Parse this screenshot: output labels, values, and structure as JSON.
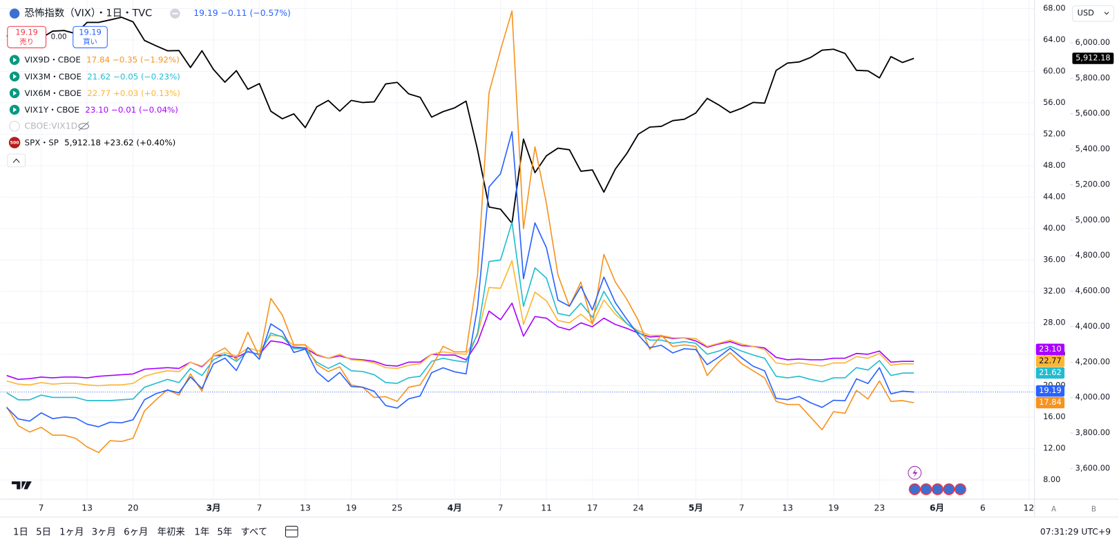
{
  "chart_data": {
    "type": "line",
    "categories": [
      null,
      null,
      null,
      "7",
      null,
      null,
      null,
      "13",
      null,
      null,
      null,
      "20",
      null,
      null,
      null,
      null,
      null,
      null,
      "3月",
      null,
      null,
      null,
      "7",
      null,
      null,
      null,
      "13",
      null,
      null,
      null,
      "19",
      null,
      null,
      null,
      "25",
      null,
      null,
      null,
      null,
      "4月",
      null,
      null,
      null,
      "7",
      null,
      null,
      null,
      "11",
      null,
      null,
      null,
      "17",
      null,
      null,
      null,
      "24",
      null,
      null,
      null,
      null,
      "5月",
      null,
      null,
      null,
      "7",
      null,
      null,
      null,
      "13",
      null,
      null,
      null,
      "19",
      null,
      null,
      null,
      "23",
      null,
      null,
      null,
      null,
      "6月",
      null,
      null,
      null,
      "6",
      null,
      null,
      null,
      "12"
    ],
    "series": [
      {
        "name": "恐怖指数（VIX）・1日・TVC",
        "quote": "19.19 −0.11 (−0.57%)",
        "color": "#2962ff",
        "last_label": "19.19",
        "values": [
          17.21,
          15.77,
          15.5,
          16.54,
          15.81,
          16.02,
          15.89,
          15.1,
          14.77,
          15.35,
          15.27,
          15.66,
          18.21,
          18.98,
          19.43,
          19.1,
          21.13,
          19.63,
          22.78,
          23.51,
          21.93,
          24.87,
          23.37,
          27.86,
          26.92,
          24.23,
          24.66,
          21.77,
          20.51,
          21.7,
          19.9,
          19.8,
          19.28,
          17.48,
          17.15,
          18.33,
          18.69,
          21.65,
          22.28,
          21.77,
          21.51,
          30.02,
          45.31,
          46.98,
          52.33,
          33.62,
          40.72,
          37.56,
          30.89,
          30.12,
          32.64,
          29.65,
          33.82,
          30.57,
          28.45,
          26.47,
          24.84,
          25.15,
          24.17,
          24.7,
          24.6,
          22.68,
          23.64,
          24.76,
          23.55,
          22.48,
          21.9,
          18.39,
          18.22,
          18.62,
          17.83,
          17.24,
          18.14,
          18.09,
          20.87,
          20.28,
          22.29,
          18.96,
          19.31,
          19.19,
          null,
          null,
          null,
          null,
          null,
          null,
          null,
          null,
          null,
          null
        ]
      },
      {
        "name": "VIX9D・CBOE",
        "quote": "17.84 −0.35 (−1.92%)",
        "color": "#f7931e",
        "last_label": "17.84",
        "values": [
          17.3,
          14.9,
          14.1,
          14.7,
          13.7,
          13.7,
          13.3,
          12.2,
          11.5,
          13.0,
          12.9,
          13.3,
          16.8,
          18.2,
          19.5,
          18.8,
          21.5,
          19.3,
          24.0,
          24.8,
          23.3,
          26.8,
          23.7,
          31.1,
          29.0,
          25.2,
          25.2,
          22.7,
          21.8,
          22.4,
          20.1,
          19.8,
          18.5,
          18.6,
          18.0,
          19.8,
          20.1,
          22.4,
          25.0,
          24.3,
          24.3,
          34.1,
          57.3,
          62.7,
          67.7,
          40.0,
          50.4,
          43.2,
          34.1,
          30.1,
          33.2,
          27.8,
          36.7,
          33.2,
          31.0,
          28.3,
          24.6,
          26.4,
          25.0,
          25.2,
          25.0,
          21.3,
          23.0,
          24.2,
          22.8,
          21.9,
          21.0,
          18.0,
          17.6,
          17.6,
          16.0,
          14.4,
          16.7,
          16.5,
          19.4,
          18.3,
          20.6,
          18.0,
          18.1,
          17.84,
          null,
          null,
          null,
          null,
          null,
          null,
          null,
          null,
          null,
          null
        ]
      },
      {
        "name": "VIX3M・CBOE",
        "quote": "21.62 −0.05 (−0.23%)",
        "color": "#22bcd1",
        "last_label": "21.62",
        "values": [
          19.1,
          18.2,
          18.2,
          18.8,
          18.5,
          18.5,
          18.5,
          18.1,
          18.1,
          18.1,
          18.2,
          18.3,
          19.8,
          20.3,
          20.8,
          20.4,
          22.2,
          21.3,
          23.3,
          24.0,
          23.1,
          24.4,
          23.9,
          26.7,
          26.2,
          24.7,
          24.7,
          23.0,
          22.2,
          22.9,
          21.9,
          21.8,
          21.4,
          20.4,
          20.3,
          21.0,
          21.2,
          23.1,
          23.5,
          23.2,
          23.0,
          26.7,
          35.8,
          36.0,
          40.8,
          30.1,
          35.0,
          33.7,
          29.2,
          28.9,
          30.5,
          28.7,
          32.0,
          29.6,
          27.9,
          26.8,
          25.8,
          25.8,
          25.4,
          25.6,
          25.4,
          24.0,
          24.4,
          25.0,
          24.4,
          23.9,
          23.5,
          21.2,
          21.0,
          21.2,
          20.8,
          20.5,
          21.0,
          21.0,
          22.3,
          22.0,
          23.2,
          21.3,
          21.6,
          21.62,
          null,
          null,
          null,
          null,
          null,
          null,
          null,
          null,
          null,
          null
        ]
      },
      {
        "name": "VIX6M・CBOE",
        "quote": "22.77 +0.03 (+0.13%)",
        "color": "#fbb634",
        "last_label": "22.77",
        "values": [
          20.6,
          20.2,
          20.1,
          20.4,
          20.2,
          20.3,
          20.3,
          20.1,
          20.0,
          20.1,
          20.1,
          20.3,
          21.2,
          21.6,
          21.9,
          21.8,
          23.0,
          22.5,
          23.8,
          24.2,
          23.8,
          24.8,
          24.4,
          26.4,
          26.3,
          25.1,
          25.2,
          24.0,
          23.5,
          24.0,
          23.3,
          23.2,
          22.9,
          22.3,
          22.2,
          22.6,
          22.8,
          24.0,
          24.3,
          24.1,
          24.0,
          26.4,
          32.5,
          32.4,
          35.9,
          27.8,
          31.9,
          30.8,
          28.3,
          28.0,
          29.1,
          27.9,
          30.9,
          29.1,
          27.9,
          27.0,
          26.4,
          26.4,
          26.1,
          26.1,
          26.0,
          25.0,
          25.4,
          25.8,
          25.3,
          25.0,
          24.6,
          22.9,
          22.7,
          22.9,
          22.7,
          22.5,
          22.9,
          22.9,
          23.7,
          23.5,
          24.1,
          22.6,
          22.8,
          22.77,
          null,
          null,
          null,
          null,
          null,
          null,
          null,
          null,
          null,
          null
        ]
      },
      {
        "name": "VIX1Y・CBOE",
        "quote": "23.10 −0.01 (−0.04%)",
        "color": "#aa00ff",
        "last_label": "23.10",
        "values": [
          21.3,
          20.8,
          20.9,
          21.1,
          21.0,
          21.1,
          21.1,
          21.0,
          21.2,
          21.3,
          21.4,
          21.5,
          22.1,
          22.2,
          22.3,
          22.2,
          23.0,
          22.4,
          23.8,
          23.9,
          23.6,
          24.3,
          24.0,
          25.7,
          25.5,
          24.9,
          24.8,
          23.9,
          23.5,
          23.8,
          23.4,
          23.3,
          23.1,
          22.6,
          22.5,
          23.0,
          23.0,
          24.0,
          23.9,
          23.9,
          23.3,
          25.5,
          29.5,
          28.4,
          30.5,
          26.3,
          28.8,
          28.6,
          27.5,
          27.1,
          28.0,
          27.5,
          28.6,
          27.8,
          27.3,
          26.7,
          26.2,
          26.3,
          26.0,
          26.1,
          25.7,
          24.9,
          25.3,
          25.6,
          25.1,
          25.0,
          24.8,
          23.6,
          23.3,
          23.4,
          23.3,
          23.3,
          23.5,
          23.5,
          24.1,
          24.0,
          24.4,
          23.0,
          23.1,
          23.1,
          null,
          null,
          null,
          null,
          null,
          null,
          null,
          null,
          null,
          null
        ]
      },
      {
        "name": "SPX・SP",
        "quote": "5,912.18 +23.62 (+0.40%)",
        "badge": "500",
        "color": "#000000",
        "axis": "y2",
        "last_label": "5,912.18",
        "values": [
          6037,
          6061,
          6083,
          6026,
          6066,
          6069,
          6052,
          6115,
          6115,
          6129,
          6144,
          6118,
          6013,
          5983,
          5955,
          5956,
          5861,
          5955,
          5850,
          5778,
          5843,
          5738,
          5770,
          5614,
          5572,
          5599,
          5522,
          5639,
          5675,
          5615,
          5675,
          5663,
          5667,
          5768,
          5777,
          5712,
          5693,
          5581,
          5612,
          5633,
          5671,
          5397,
          5074,
          5062,
          4983,
          5457,
          5268,
          5363,
          5406,
          5397,
          5276,
          5283,
          5158,
          5288,
          5376,
          5485,
          5525,
          5529,
          5561,
          5569,
          5604,
          5687,
          5650,
          5607,
          5631,
          5664,
          5660,
          5844,
          5886,
          5892,
          5917,
          5958,
          5964,
          5940,
          5845,
          5842,
          5802,
          5922,
          5889,
          5912.18,
          null,
          null,
          null,
          null,
          null,
          null,
          null,
          null,
          null,
          null
        ]
      }
    ],
    "ylim": [
      5.55,
      69.09
    ],
    "yticks": [
      {
        "value": 8,
        "label": "8.00"
      },
      {
        "value": 12,
        "label": "12.00"
      },
      {
        "value": 16,
        "label": "16.00"
      },
      {
        "value": 20,
        "label": "20.00"
      },
      {
        "value": 24,
        "label": "24.00"
      },
      {
        "value": 28,
        "label": "28.00"
      },
      {
        "value": 32,
        "label": "32.00"
      },
      {
        "value": 36,
        "label": "36.00"
      },
      {
        "value": 40,
        "label": "40.00"
      },
      {
        "value": 44,
        "label": "44.00"
      },
      {
        "value": 48,
        "label": "48.00"
      },
      {
        "value": 52,
        "label": "52.00"
      },
      {
        "value": 56,
        "label": "56.00"
      },
      {
        "value": 60,
        "label": "60.00"
      },
      {
        "value": 64,
        "label": "64.00"
      },
      {
        "value": 68,
        "label": "68.00"
      }
    ],
    "y2lim": [
      3427.1,
      6241.2
    ],
    "y2ticks": [
      {
        "value": 3600,
        "label": "3,600.00"
      },
      {
        "value": 3800,
        "label": "3,800.00"
      },
      {
        "value": 4000,
        "label": "4,000.00"
      },
      {
        "value": 4200,
        "label": "4,200.00"
      },
      {
        "value": 4400,
        "label": "4,400.00"
      },
      {
        "value": 4600,
        "label": "4,600.00"
      },
      {
        "value": 4800,
        "label": "4,800.00"
      },
      {
        "value": 5000,
        "label": "5,000.00"
      },
      {
        "value": 5200,
        "label": "5,200.00"
      },
      {
        "value": 5400,
        "label": "5,400.00"
      },
      {
        "value": 5600,
        "label": "5,600.00"
      },
      {
        "value": 5800,
        "label": "5,800.00"
      },
      {
        "value": 6000,
        "label": "6,000.00"
      }
    ],
    "grid": true
  },
  "ui": {
    "trade": {
      "sell_price": "19.19",
      "sell_label": "売り",
      "spread": "0.00",
      "buy_price": "19.19",
      "buy_label": "買い"
    },
    "hidden_legend": "CBOE:VIX1D",
    "currency": "USD",
    "scale_buttons": [
      "A",
      "B"
    ],
    "ranges": [
      "1日",
      "5日",
      "1ヶ月",
      "3ヶ月",
      "6ヶ月",
      "年初来",
      "1年",
      "5年",
      "すべて"
    ],
    "clock": "07:31:29 UTC+9"
  }
}
